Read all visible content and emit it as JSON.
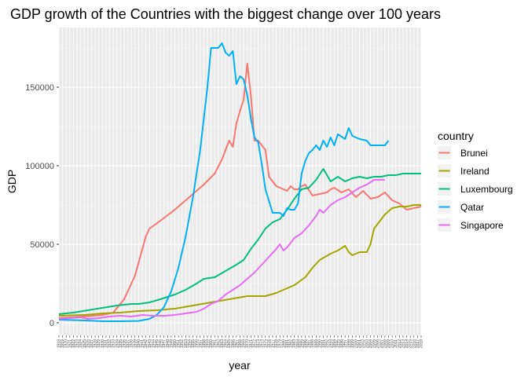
{
  "chart_data": {
    "type": "line",
    "title": "GDP growth of the Countries with the biggest change over 100 years",
    "xlabel": "year",
    "ylabel": "GDP",
    "xlim": [
      1918,
      2018
    ],
    "ylim": [
      -8000,
      188000
    ],
    "y_ticks": [
      0,
      50000,
      100000,
      150000
    ],
    "y_tick_labels": [
      "0",
      "50000",
      "100000",
      "150000"
    ],
    "x_tick_labels": [
      "1918",
      "1919",
      "1920",
      "1921",
      "1922",
      "1923",
      "1924",
      "1925",
      "1926",
      "1927",
      "1928",
      "1929",
      "1930",
      "1931",
      "1932",
      "1933",
      "1934",
      "1935",
      "1936",
      "1937",
      "1938",
      "1939",
      "1940",
      "1941",
      "1942",
      "1943",
      "1944",
      "1945",
      "1946",
      "1947",
      "1948",
      "1949",
      "1950",
      "1951",
      "1952",
      "1953",
      "1954",
      "1955",
      "1956",
      "1957",
      "1958",
      "1959",
      "1960",
      "1961",
      "1962",
      "1963",
      "1964",
      "1965",
      "1966",
      "1967",
      "1968",
      "1969",
      "1970",
      "1971",
      "1972",
      "1973",
      "1974",
      "1975",
      "1976",
      "1977",
      "1978",
      "1979",
      "1980",
      "1981",
      "1982",
      "1983",
      "1984",
      "1985",
      "1986",
      "1987",
      "1988",
      "1989",
      "1990",
      "1991",
      "1992",
      "1993",
      "1994",
      "1995",
      "1996",
      "1997",
      "1998",
      "1999",
      "2000",
      "2001",
      "2002",
      "2003",
      "2004",
      "2005",
      "2006",
      "2007",
      "2008",
      "2009",
      "2010",
      "2011",
      "2012",
      "2013",
      "2014",
      "2015",
      "2016",
      "2017",
      "2018"
    ],
    "grid": true,
    "legend_title": "country",
    "legend_position": "right",
    "series": [
      {
        "name": "Brunei",
        "color": "#F8766D",
        "points": [
          [
            1918,
            3000
          ],
          [
            1925,
            4000
          ],
          [
            1930,
            5000
          ],
          [
            1933,
            6500
          ],
          [
            1936,
            15000
          ],
          [
            1939,
            30000
          ],
          [
            1942,
            55000
          ],
          [
            1943,
            60000
          ],
          [
            1946,
            65000
          ],
          [
            1950,
            72000
          ],
          [
            1954,
            80000
          ],
          [
            1958,
            88000
          ],
          [
            1961,
            95000
          ],
          [
            1963,
            104000
          ],
          [
            1964,
            110000
          ],
          [
            1965,
            116000
          ],
          [
            1966,
            112000
          ],
          [
            1967,
            127000
          ],
          [
            1968,
            135000
          ],
          [
            1969,
            142000
          ],
          [
            1970,
            165000
          ],
          [
            1971,
            145000
          ],
          [
            1972,
            116000
          ],
          [
            1973,
            116000
          ],
          [
            1975,
            110000
          ],
          [
            1976,
            93000
          ],
          [
            1978,
            87000
          ],
          [
            1980,
            85000
          ],
          [
            1981,
            84000
          ],
          [
            1982,
            87000
          ],
          [
            1983,
            85000
          ],
          [
            1984,
            85000
          ],
          [
            1985,
            87000
          ],
          [
            1986,
            88000
          ],
          [
            1988,
            81000
          ],
          [
            1990,
            82000
          ],
          [
            1992,
            83000
          ],
          [
            1993,
            85000
          ],
          [
            1994,
            86000
          ],
          [
            1996,
            83000
          ],
          [
            1998,
            85000
          ],
          [
            2000,
            80000
          ],
          [
            2002,
            84000
          ],
          [
            2004,
            79000
          ],
          [
            2006,
            80000
          ],
          [
            2008,
            83000
          ],
          [
            2010,
            78000
          ],
          [
            2012,
            76000
          ],
          [
            2014,
            72000
          ],
          [
            2016,
            73000
          ],
          [
            2018,
            74000
          ]
        ]
      },
      {
        "name": "Ireland",
        "color": "#A3A500",
        "points": [
          [
            1918,
            4500
          ],
          [
            1925,
            5000
          ],
          [
            1930,
            6000
          ],
          [
            1935,
            6500
          ],
          [
            1940,
            7500
          ],
          [
            1945,
            8000
          ],
          [
            1950,
            9000
          ],
          [
            1955,
            11000
          ],
          [
            1960,
            13000
          ],
          [
            1965,
            15000
          ],
          [
            1970,
            17000
          ],
          [
            1973,
            17000
          ],
          [
            1975,
            17000
          ],
          [
            1978,
            19000
          ],
          [
            1980,
            21000
          ],
          [
            1983,
            24000
          ],
          [
            1986,
            29000
          ],
          [
            1988,
            35000
          ],
          [
            1990,
            40000
          ],
          [
            1993,
            44000
          ],
          [
            1995,
            46000
          ],
          [
            1997,
            49000
          ],
          [
            1998,
            45000
          ],
          [
            1999,
            43000
          ],
          [
            2001,
            45000
          ],
          [
            2003,
            45000
          ],
          [
            2004,
            50000
          ],
          [
            2005,
            60000
          ],
          [
            2006,
            63000
          ],
          [
            2008,
            69000
          ],
          [
            2010,
            73000
          ],
          [
            2012,
            74000
          ],
          [
            2014,
            74000
          ],
          [
            2016,
            75000
          ],
          [
            2018,
            75000
          ]
        ]
      },
      {
        "name": "Luxembourg",
        "color": "#00BF7D",
        "points": [
          [
            1918,
            5500
          ],
          [
            1922,
            6500
          ],
          [
            1926,
            8000
          ],
          [
            1930,
            9500
          ],
          [
            1934,
            11000
          ],
          [
            1938,
            12000
          ],
          [
            1940,
            12000
          ],
          [
            1943,
            13000
          ],
          [
            1946,
            15000
          ],
          [
            1950,
            18000
          ],
          [
            1953,
            21000
          ],
          [
            1956,
            25000
          ],
          [
            1958,
            28000
          ],
          [
            1961,
            29000
          ],
          [
            1964,
            33000
          ],
          [
            1967,
            37000
          ],
          [
            1969,
            40000
          ],
          [
            1971,
            47000
          ],
          [
            1973,
            53000
          ],
          [
            1975,
            60000
          ],
          [
            1977,
            64000
          ],
          [
            1979,
            66000
          ],
          [
            1981,
            72000
          ],
          [
            1983,
            79000
          ],
          [
            1985,
            85000
          ],
          [
            1987,
            86000
          ],
          [
            1989,
            91000
          ],
          [
            1991,
            98000
          ],
          [
            1993,
            90000
          ],
          [
            1995,
            93000
          ],
          [
            1997,
            90000
          ],
          [
            1999,
            92000
          ],
          [
            2001,
            93000
          ],
          [
            2003,
            92000
          ],
          [
            2005,
            93000
          ],
          [
            2007,
            93000
          ],
          [
            2009,
            94000
          ],
          [
            2011,
            94000
          ],
          [
            2013,
            95000
          ],
          [
            2015,
            95000
          ],
          [
            2018,
            95000
          ]
        ]
      },
      {
        "name": "Qatar",
        "color": "#00B0F6",
        "points": [
          [
            1918,
            2000
          ],
          [
            1925,
            1500
          ],
          [
            1930,
            1000
          ],
          [
            1935,
            1000
          ],
          [
            1940,
            1200
          ],
          [
            1943,
            2500
          ],
          [
            1945,
            5000
          ],
          [
            1947,
            10000
          ],
          [
            1949,
            20000
          ],
          [
            1951,
            35000
          ],
          [
            1953,
            55000
          ],
          [
            1955,
            80000
          ],
          [
            1957,
            110000
          ],
          [
            1959,
            150000
          ],
          [
            1960,
            175000
          ],
          [
            1962,
            175000
          ],
          [
            1963,
            178000
          ],
          [
            1964,
            172000
          ],
          [
            1965,
            170000
          ],
          [
            1966,
            173000
          ],
          [
            1967,
            152000
          ],
          [
            1968,
            157000
          ],
          [
            1969,
            155000
          ],
          [
            1970,
            145000
          ],
          [
            1971,
            130000
          ],
          [
            1972,
            118000
          ],
          [
            1973,
            115000
          ],
          [
            1974,
            101000
          ],
          [
            1975,
            85000
          ],
          [
            1977,
            70000
          ],
          [
            1979,
            70000
          ],
          [
            1980,
            68000
          ],
          [
            1981,
            73000
          ],
          [
            1982,
            72000
          ],
          [
            1983,
            72000
          ],
          [
            1984,
            76000
          ],
          [
            1985,
            95000
          ],
          [
            1986,
            103000
          ],
          [
            1987,
            108000
          ],
          [
            1988,
            110000
          ],
          [
            1989,
            113000
          ],
          [
            1990,
            110000
          ],
          [
            1991,
            116000
          ],
          [
            1992,
            112000
          ],
          [
            1993,
            118000
          ],
          [
            1994,
            113000
          ],
          [
            1995,
            120000
          ],
          [
            1997,
            117000
          ],
          [
            1998,
            124000
          ],
          [
            1999,
            119000
          ],
          [
            2001,
            117000
          ],
          [
            2003,
            116000
          ],
          [
            2004,
            113000
          ],
          [
            2006,
            113000
          ],
          [
            2008,
            113000
          ],
          [
            2009,
            116000
          ]
        ]
      },
      {
        "name": "Singapore",
        "color": "#E76BF3",
        "points": [
          [
            1918,
            2500
          ],
          [
            1921,
            3000
          ],
          [
            1924,
            3500
          ],
          [
            1926,
            2500
          ],
          [
            1929,
            3000
          ],
          [
            1932,
            4000
          ],
          [
            1935,
            4500
          ],
          [
            1938,
            4000
          ],
          [
            1941,
            5000
          ],
          [
            1944,
            4500
          ],
          [
            1947,
            4500
          ],
          [
            1950,
            5000
          ],
          [
            1953,
            6000
          ],
          [
            1956,
            7000
          ],
          [
            1958,
            9000
          ],
          [
            1960,
            12000
          ],
          [
            1962,
            14000
          ],
          [
            1964,
            18000
          ],
          [
            1966,
            21000
          ],
          [
            1968,
            24000
          ],
          [
            1970,
            28000
          ],
          [
            1972,
            32000
          ],
          [
            1974,
            37000
          ],
          [
            1976,
            42000
          ],
          [
            1978,
            47000
          ],
          [
            1979,
            50000
          ],
          [
            1980,
            46000
          ],
          [
            1981,
            48000
          ],
          [
            1983,
            54000
          ],
          [
            1985,
            57000
          ],
          [
            1987,
            62000
          ],
          [
            1989,
            68000
          ],
          [
            1990,
            72000
          ],
          [
            1991,
            70000
          ],
          [
            1993,
            75000
          ],
          [
            1995,
            78000
          ],
          [
            1997,
            80000
          ],
          [
            1999,
            83000
          ],
          [
            2001,
            86000
          ],
          [
            2003,
            88000
          ],
          [
            2005,
            91000
          ],
          [
            2008,
            91000
          ]
        ]
      }
    ]
  }
}
